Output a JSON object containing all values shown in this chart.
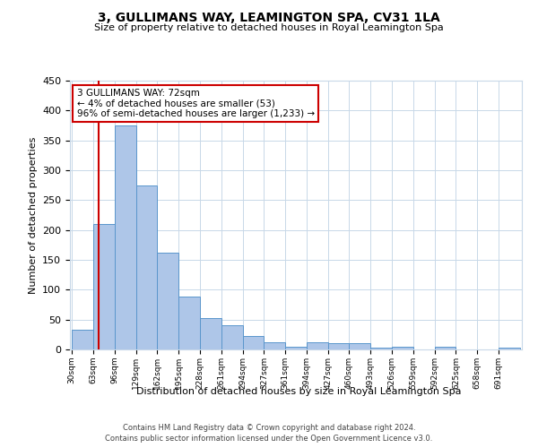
{
  "title": "3, GULLIMANS WAY, LEAMINGTON SPA, CV31 1LA",
  "subtitle": "Size of property relative to detached houses in Royal Leamington Spa",
  "xlabel": "Distribution of detached houses by size in Royal Leamington Spa",
  "ylabel": "Number of detached properties",
  "bar_labels": [
    "30sqm",
    "63sqm",
    "96sqm",
    "129sqm",
    "162sqm",
    "195sqm",
    "228sqm",
    "261sqm",
    "294sqm",
    "327sqm",
    "361sqm",
    "394sqm",
    "427sqm",
    "460sqm",
    "493sqm",
    "526sqm",
    "559sqm",
    "592sqm",
    "625sqm",
    "658sqm",
    "691sqm"
  ],
  "bar_values": [
    33,
    210,
    375,
    275,
    162,
    88,
    53,
    40,
    23,
    12,
    5,
    12,
    11,
    10,
    3,
    5,
    0,
    4,
    0,
    0,
    3
  ],
  "bar_color": "#aec6e8",
  "bar_edge_color": "#5a96cc",
  "ylim": [
    0,
    450
  ],
  "yticks": [
    0,
    50,
    100,
    150,
    200,
    250,
    300,
    350,
    400,
    450
  ],
  "property_line_x": 72,
  "property_line_label": "3 GULLIMANS WAY: 72sqm",
  "annotation_line1": "← 4% of detached houses are smaller (53)",
  "annotation_line2": "96% of semi-detached houses are larger (1,233) →",
  "annotation_box_color": "#ffffff",
  "annotation_box_edge_color": "#cc0000",
  "line_color": "#cc0000",
  "footer1": "Contains HM Land Registry data © Crown copyright and database right 2024.",
  "footer2": "Contains public sector information licensed under the Open Government Licence v3.0.",
  "background_color": "#ffffff",
  "grid_color": "#c8d8e8",
  "bin_width": 33
}
